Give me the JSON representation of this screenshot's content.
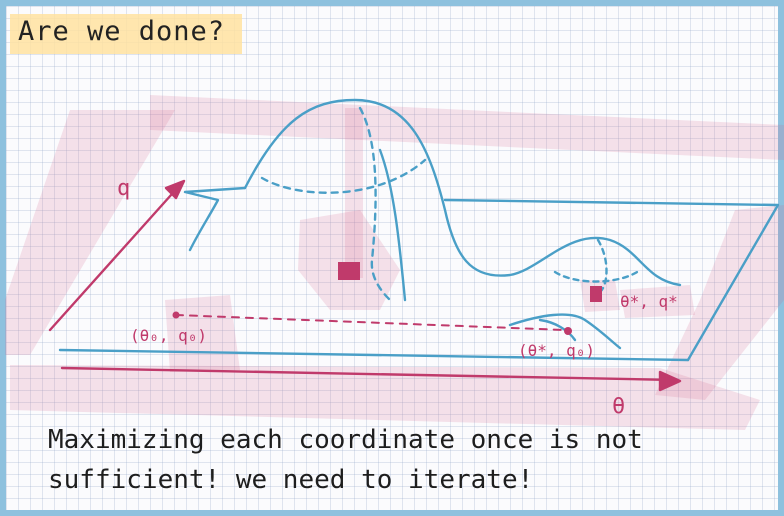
{
  "title": "Are we done?",
  "labels": {
    "q_axis": "q",
    "theta_axis": "θ",
    "start_point": "(θ₀, q₀)",
    "after_theta_point": "(θ*, q₀)",
    "optimum_point": "θ*, q*"
  },
  "caption": {
    "line1": "Maximizing each coordinate once is not",
    "line2": "sufficient! we need to iterate!"
  },
  "colors": {
    "surface_lines": "#4a9fc7",
    "axes_and_annotations": "#c03a6b",
    "highlight_marker": "rgba(214, 84, 130, 0.22)",
    "title_highlight": "#ffe2a0"
  }
}
